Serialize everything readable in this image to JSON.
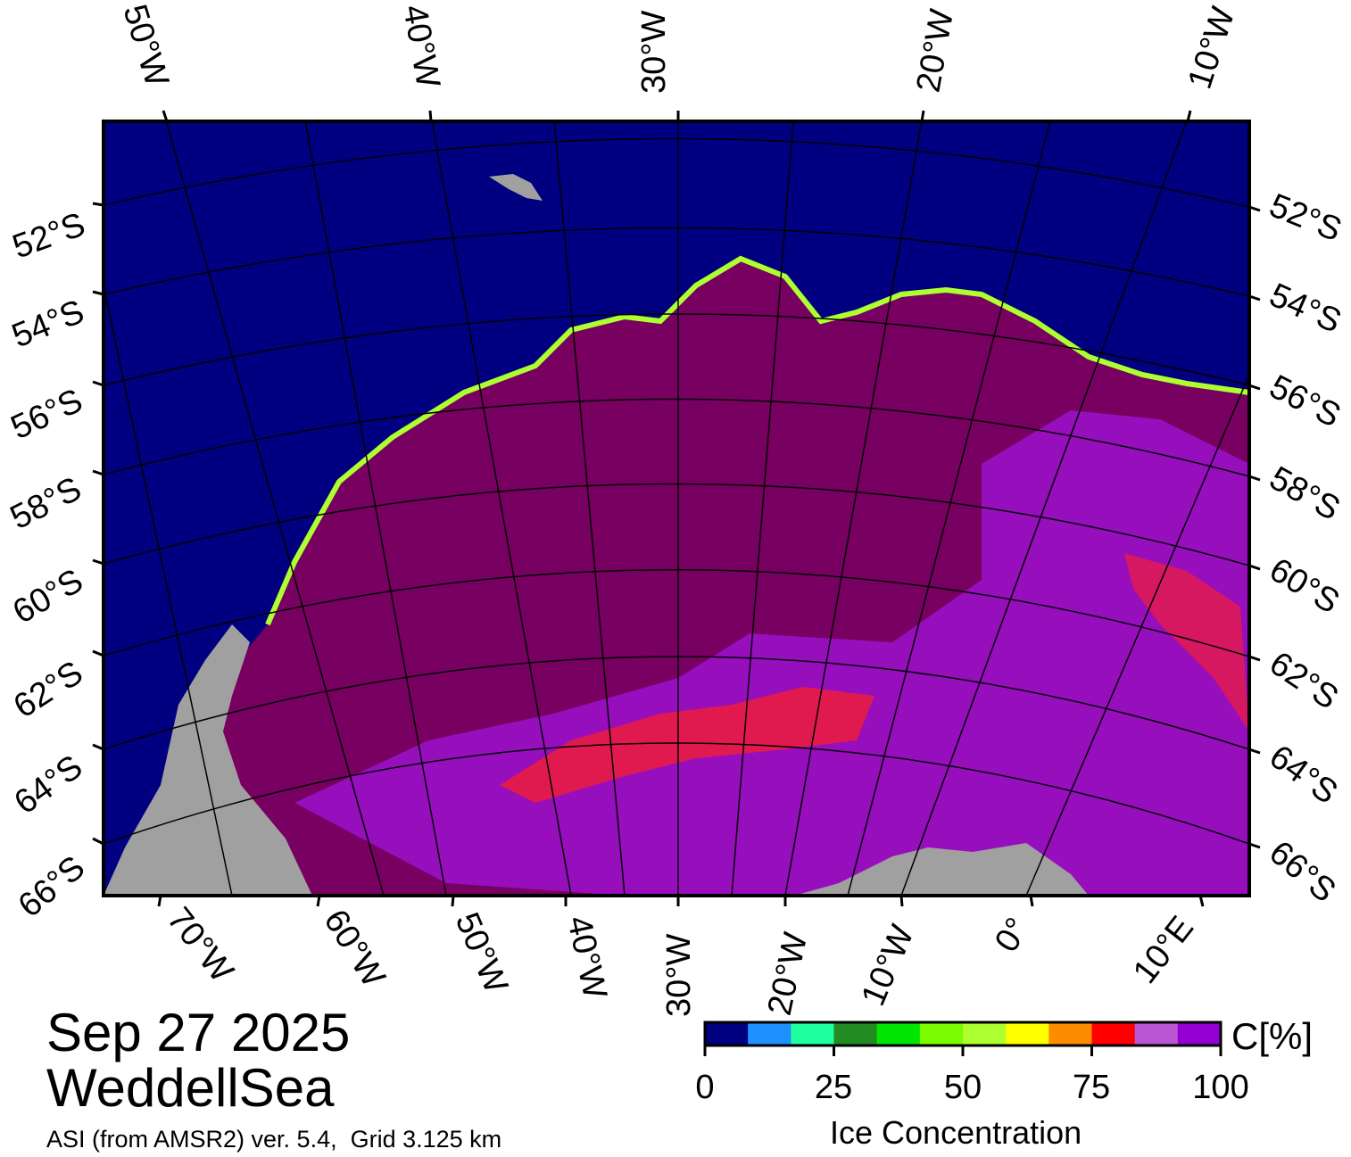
{
  "map": {
    "date": "Sep 27 2025",
    "region": "WeddellSea",
    "product": "ASI (from AMSR2) ver. 5.4,  Grid 3.125 km",
    "top_lon_labels": [
      "50°W",
      "40°W",
      "30°W",
      "20°W",
      "10°W"
    ],
    "bottom_lon_labels": [
      "70°W",
      "60°W",
      "50°W",
      "40°W",
      "30°W",
      "20°W",
      "10°W",
      "0°",
      "10°E"
    ],
    "lat_labels": [
      "52°S",
      "54°S",
      "56°S",
      "58°S",
      "60°S",
      "62°S",
      "64°S",
      "66°S"
    ],
    "colors": {
      "ocean": "#000080",
      "ice_high": "#780060",
      "ice_mid": "#9a10c8",
      "land": "#a0a0a0"
    }
  },
  "colorbar": {
    "unit": "C[%]",
    "title": "Ice Concentration",
    "ticks": [
      "0",
      "25",
      "50",
      "75",
      "100"
    ],
    "colors": [
      "#000080",
      "#1e90ff",
      "#1effa0",
      "#228b22",
      "#00e600",
      "#7cfc00",
      "#adff2f",
      "#ffff00",
      "#ff8c00",
      "#ff0000",
      "#ba55d3",
      "#9400d3"
    ]
  }
}
